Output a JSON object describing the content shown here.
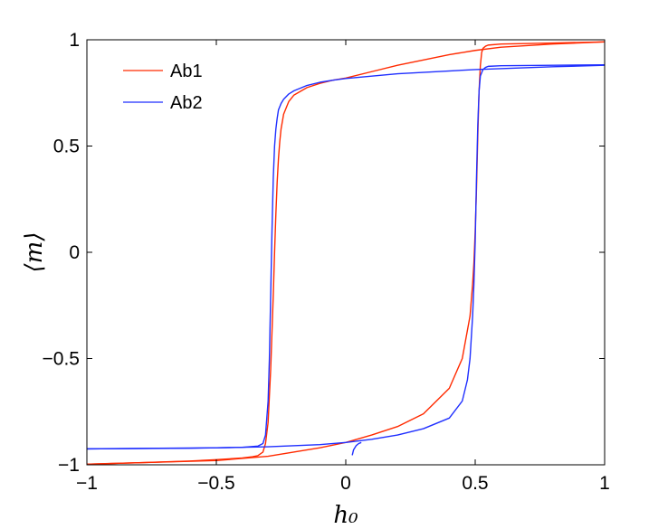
{
  "chart_data": {
    "type": "line",
    "title": "",
    "xlabel": "h₀",
    "ylabel": "⟨m⟩",
    "xlim": [
      -1,
      1
    ],
    "ylim": [
      -1,
      1
    ],
    "xticks": [
      "−1",
      "−0.5",
      "0",
      "0.5",
      "1"
    ],
    "xtick_values": [
      -1,
      -0.5,
      0,
      0.5,
      1
    ],
    "yticks": [
      "−1",
      "−0.5",
      "0",
      "0.5",
      "1"
    ],
    "ytick_values": [
      -1,
      -0.5,
      0,
      0.5,
      1
    ],
    "grid": false,
    "legend_position": "top-left",
    "series": [
      {
        "name": "Ab1",
        "color": "#ff2a00",
        "branches": [
          {
            "x": [
              -1,
              -0.8,
              -0.6,
              -0.5,
              -0.4,
              -0.36,
              -0.34,
              -0.32,
              -0.31,
              -0.3,
              -0.29,
              -0.28,
              -0.275,
              -0.27,
              -0.265,
              -0.26,
              -0.255,
              -0.25,
              -0.24,
              -0.22,
              -0.2,
              -0.15,
              -0.1,
              -0.05,
              0,
              0.1,
              0.2,
              0.3,
              0.4,
              0.5,
              0.6,
              0.8,
              1.0
            ],
            "y": [
              -0.997,
              -0.99,
              -0.982,
              -0.976,
              -0.968,
              -0.962,
              -0.957,
              -0.94,
              -0.9,
              -0.8,
              -0.55,
              -0.2,
              0.0,
              0.18,
              0.33,
              0.44,
              0.52,
              0.58,
              0.65,
              0.71,
              0.74,
              0.775,
              0.795,
              0.81,
              0.82,
              0.85,
              0.88,
              0.905,
              0.93,
              0.95,
              0.965,
              0.98,
              0.99
            ]
          },
          {
            "x": [
              -1,
              -0.5,
              -0.3,
              -0.1,
              0,
              0.1,
              0.2,
              0.3,
              0.4,
              0.45,
              0.48,
              0.49,
              0.495,
              0.5,
              0.505,
              0.51,
              0.515,
              0.52,
              0.525,
              0.53,
              0.54,
              0.55,
              0.6,
              0.8,
              1.0
            ],
            "y": [
              -0.997,
              -0.98,
              -0.96,
              -0.92,
              -0.895,
              -0.86,
              -0.82,
              -0.76,
              -0.64,
              -0.5,
              -0.3,
              -0.15,
              -0.05,
              0.1,
              0.3,
              0.55,
              0.76,
              0.88,
              0.94,
              0.96,
              0.97,
              0.975,
              0.98,
              0.985,
              0.99
            ]
          }
        ]
      },
      {
        "name": "Ab2",
        "color": "#1f2fff",
        "branches": [
          {
            "x": [
              -1,
              -0.6,
              -0.4,
              -0.34,
              -0.32,
              -0.31,
              -0.3,
              -0.295,
              -0.29,
              -0.285,
              -0.28,
              -0.275,
              -0.27,
              -0.265,
              -0.26,
              -0.25,
              -0.24,
              -0.22,
              -0.2,
              -0.15,
              -0.1,
              -0.05,
              0,
              0.2,
              0.5,
              0.8,
              1.0
            ],
            "y": [
              -0.925,
              -0.922,
              -0.918,
              -0.912,
              -0.9,
              -0.86,
              -0.7,
              -0.5,
              -0.2,
              0.1,
              0.35,
              0.5,
              0.58,
              0.63,
              0.67,
              0.7,
              0.72,
              0.745,
              0.76,
              0.785,
              0.8,
              0.81,
              0.818,
              0.84,
              0.86,
              0.873,
              0.88
            ]
          },
          {
            "x": [
              -1,
              -0.5,
              -0.3,
              -0.1,
              0,
              0.1,
              0.2,
              0.3,
              0.4,
              0.45,
              0.47,
              0.48,
              0.49,
              0.495,
              0.5,
              0.505,
              0.51,
              0.515,
              0.52,
              0.53,
              0.54,
              0.55,
              0.6,
              0.8,
              1.0
            ],
            "y": [
              -0.925,
              -0.92,
              -0.915,
              -0.905,
              -0.895,
              -0.88,
              -0.86,
              -0.83,
              -0.78,
              -0.7,
              -0.6,
              -0.5,
              -0.3,
              -0.15,
              0.05,
              0.35,
              0.6,
              0.76,
              0.83,
              0.86,
              0.87,
              0.875,
              0.878,
              0.88,
              0.882
            ]
          },
          {
            "x": [
              0.025,
              0.03,
              0.04,
              0.05,
              0.06
            ],
            "y": [
              -0.955,
              -0.93,
              -0.91,
              -0.9,
              -0.895
            ]
          }
        ]
      }
    ]
  }
}
